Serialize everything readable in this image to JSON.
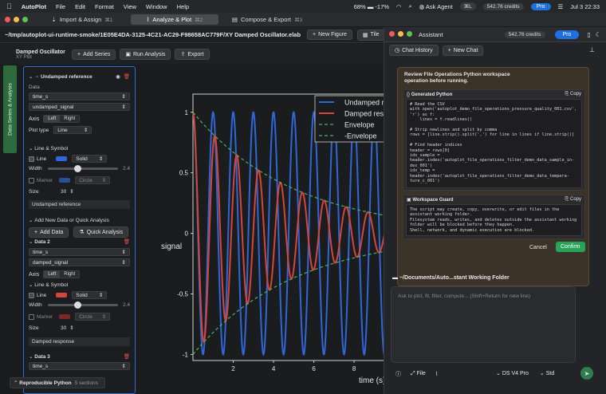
{
  "menubar": {
    "app": "AutoPlot",
    "items": [
      "File",
      "Edit",
      "Format",
      "View",
      "Window",
      "Help"
    ],
    "battery": "68%",
    "temp": "-17%",
    "ask_agent": "Ask Agent",
    "shortcut": "⌘L",
    "credits": "542.76 credits",
    "pro": "Pro",
    "date": "Jul 3",
    "time": "22:33"
  },
  "tabs": [
    {
      "label": "Import & Assign",
      "shortcut": "⌘1"
    },
    {
      "label": "Analyze & Plot",
      "shortcut": "⌘2"
    },
    {
      "label": "Compose & Export",
      "shortcut": "⌘3"
    }
  ],
  "pathbar": {
    "path": "~/tmp/autoplot-ui-runtime-smoke/1E05E4DA-3125-4C21-AC29-F98658AC779F/XY Damped Oscillator.elab",
    "new_figure": "New Figure",
    "tile": "Tile"
  },
  "toolbar": {
    "title": "Damped Oscillator",
    "subtitle": "XY Plot",
    "add_series": "Add Series",
    "run_analysis": "Run Analysis",
    "export": "Export"
  },
  "rail": {
    "label": "Data Series & Analysis"
  },
  "panel": {
    "series1": {
      "name": "Undamped reference",
      "data_label": "Data",
      "x": "time_s",
      "y": "undamped_signal",
      "axis_label": "Axis",
      "left": "Left",
      "right": "Right",
      "plot_type_label": "Plot type",
      "plot_type": "Line",
      "line_symbol": "Line & Symbol",
      "line": "Line",
      "line_style": "Solid",
      "width_label": "Width",
      "width_value": "2.4",
      "marker": "Marker",
      "marker_shape": "Circle",
      "size_label": "Size",
      "size_value": "30",
      "footer": "Undamped reference"
    },
    "add_section": {
      "title": "Add New Data or Quick Analysis",
      "add_data": "Add Data",
      "quick_analysis": "Quick Analysis"
    },
    "series2": {
      "name": "Data 2",
      "x": "time_s",
      "y": "damped_signal",
      "axis_label": "Axis",
      "left": "Left",
      "right": "Right",
      "line_symbol": "Line & Symbol",
      "line": "Line",
      "line_style": "Solid",
      "width_label": "Width",
      "width_value": "2.4",
      "marker": "Marker",
      "marker_shape": "Circle",
      "size_label": "Size",
      "size_value": "30",
      "footer": "Damped response"
    },
    "series3": {
      "name": "Data 3",
      "x": "time_s"
    },
    "bottom": {
      "label": "Reproducible Python",
      "sections": "5 sections"
    }
  },
  "chart_data": {
    "type": "line",
    "xlabel": "time (s)",
    "ylabel": "signal",
    "yticks": [
      "1",
      "0.5",
      "0",
      "-0.5",
      "-1"
    ],
    "xticks": [
      "2",
      "4",
      "6",
      "8"
    ],
    "xlim": [
      0.0,
      9.5
    ],
    "ylim": [
      -1.05,
      1.15
    ],
    "series": [
      {
        "name": "Undamped re",
        "color": "#2f67d8",
        "kind": "cos",
        "freq_hz": 1.0,
        "decay": 0
      },
      {
        "name": "Damped resp",
        "color": "#d4453a",
        "kind": "cos",
        "freq_hz": 0.92,
        "decay": 0.2
      },
      {
        "name": "Envelope",
        "color": "#4fae6a",
        "kind": "env",
        "sign": 1,
        "decay": 0.2
      },
      {
        "name": "-Envelope",
        "color": "#4fae6a",
        "kind": "env",
        "sign": -1,
        "decay": 0.2
      }
    ]
  },
  "assistant": {
    "title": "Assistant",
    "credits": "542.76 credits",
    "pro": "Pro",
    "chat_history": "Chat History",
    "new_chat": "New Chat",
    "card_title": "Review File Operations Python workspace operation before running.",
    "generated_label": "Generated Python",
    "copy": "Copy",
    "code": "# Read the CSV\nwith open('autoplot_demo_file_operations_pressure_quality_001.csv',\n'r') as f:\n    lines = f.readlines()\n\n# Strip newlines and split by comma\nrows = [line.strip().split(',') for line in lines if line.strip()]\n\n# Find header indices\nheader = rows[0]\nidx_sample =\nheader.index('autoplot_file_operations_filter_demo_data_sample_in-\ndex_001')\nidx_temp =\nheader.index('autoplot_file_operations_filter_demo_data_tempera-\nture_c_001')",
    "guard_label": "Workspace Guard",
    "guard_text": "The script may create, copy, overwrite, or edit files in the\nassistant working folder.\nFilesystem reads, writes, and deletes outside the assistant working\nfolder will be blocked before they happen.\nShell, network, and dynamic execution are blocked.",
    "cancel": "Cancel",
    "confirm": "Confirm",
    "folder": "~/Documents/Auto...stant Working Folder",
    "input_placeholder": "Ask to plot, fit, filter, compute... (Shift+Return for new line)",
    "file": "File",
    "model": "DS V4 Pro",
    "mode": "Std"
  }
}
